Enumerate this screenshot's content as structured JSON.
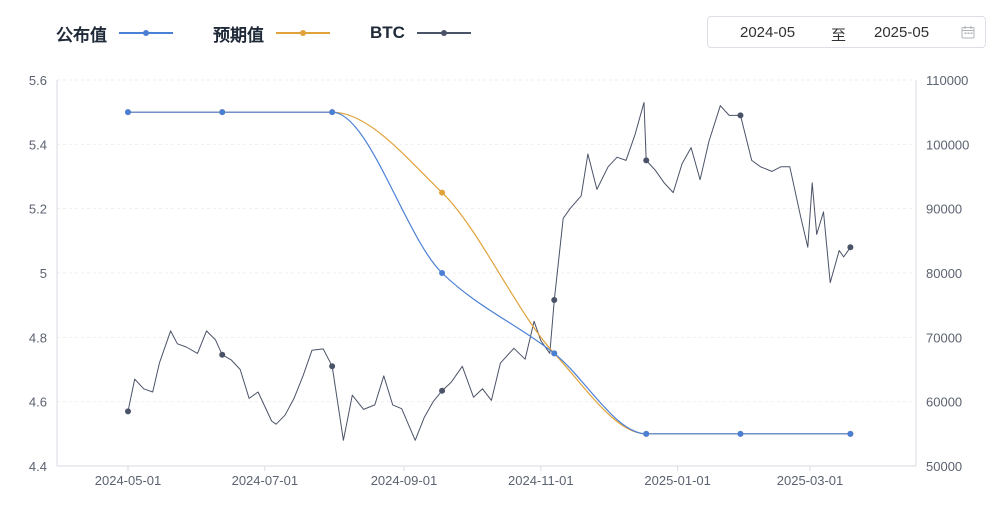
{
  "legend": {
    "items": [
      {
        "label": "公布值",
        "color": "#4a7fd6"
      },
      {
        "label": "预期值",
        "color": "#e0a23a"
      },
      {
        "label": "BTC",
        "color": "#4b5368"
      }
    ]
  },
  "date_range": {
    "start": "2024-05",
    "separator": "至",
    "end": "2025-05",
    "icon": "calendar-icon"
  },
  "chart_data": {
    "type": "line",
    "x_axis": {
      "type": "date",
      "ticks": [
        "2024-05-01",
        "2024-07-01",
        "2024-09-01",
        "2024-11-01",
        "2025-01-01",
        "2025-03-01"
      ]
    },
    "y_left": {
      "ticks": [
        "4.4",
        "4.6",
        "4.8",
        "5",
        "5.2",
        "5.4",
        "5.6"
      ],
      "ylim": [
        4.4,
        5.6
      ]
    },
    "y_right": {
      "ticks": [
        "50000",
        "60000",
        "70000",
        "80000",
        "90000",
        "100000",
        "110000"
      ],
      "ylim": [
        50000,
        110000
      ]
    },
    "grid": "horizontal dashed",
    "series": [
      {
        "name": "公布值",
        "axis": "left",
        "color": "#4a7fd6",
        "smooth": true,
        "points": [
          [
            "2024-05-01",
            5.5
          ],
          [
            "2024-06-12",
            5.5
          ],
          [
            "2024-07-31",
            5.5
          ],
          [
            "2024-09-18",
            5.0
          ],
          [
            "2024-11-07",
            4.75
          ],
          [
            "2024-12-18",
            4.5
          ],
          [
            "2025-01-29",
            4.5
          ],
          [
            "2025-03-19",
            4.5
          ]
        ]
      },
      {
        "name": "预期值",
        "axis": "left",
        "color": "#e0a23a",
        "smooth": true,
        "points": [
          [
            "2024-05-01",
            5.5
          ],
          [
            "2024-06-12",
            5.5
          ],
          [
            "2024-07-31",
            5.5
          ],
          [
            "2024-09-18",
            5.25
          ],
          [
            "2024-11-07",
            4.75
          ],
          [
            "2024-12-18",
            4.5
          ],
          [
            "2025-01-29",
            4.5
          ],
          [
            "2025-03-19",
            4.5
          ]
        ]
      },
      {
        "name": "BTC",
        "axis": "right",
        "color": "#4b5368",
        "points": [
          [
            "2024-05-01",
            58500
          ],
          [
            "2024-05-04",
            63500
          ],
          [
            "2024-05-08",
            62000
          ],
          [
            "2024-05-12",
            61500
          ],
          [
            "2024-05-15",
            66000
          ],
          [
            "2024-05-20",
            71000
          ],
          [
            "2024-05-23",
            69000
          ],
          [
            "2024-05-27",
            68500
          ],
          [
            "2024-06-01",
            67500
          ],
          [
            "2024-06-05",
            71000
          ],
          [
            "2024-06-09",
            69600
          ],
          [
            "2024-06-12",
            67300
          ],
          [
            "2024-06-16",
            66500
          ],
          [
            "2024-06-20",
            65000
          ],
          [
            "2024-06-24",
            60500
          ],
          [
            "2024-06-28",
            61500
          ],
          [
            "2024-07-04",
            57000
          ],
          [
            "2024-07-06",
            56500
          ],
          [
            "2024-07-10",
            57900
          ],
          [
            "2024-07-14",
            60500
          ],
          [
            "2024-07-18",
            64000
          ],
          [
            "2024-07-22",
            68000
          ],
          [
            "2024-07-27",
            68200
          ],
          [
            "2024-07-31",
            65500
          ],
          [
            "2024-08-05",
            54000
          ],
          [
            "2024-08-09",
            61000
          ],
          [
            "2024-08-14",
            58800
          ],
          [
            "2024-08-19",
            59500
          ],
          [
            "2024-08-23",
            64000
          ],
          [
            "2024-08-27",
            59500
          ],
          [
            "2024-08-31",
            58900
          ],
          [
            "2024-09-06",
            54000
          ],
          [
            "2024-09-10",
            57500
          ],
          [
            "2024-09-14",
            60000
          ],
          [
            "2024-09-18",
            61700
          ],
          [
            "2024-09-22",
            63000
          ],
          [
            "2024-09-27",
            65500
          ],
          [
            "2024-10-02",
            60700
          ],
          [
            "2024-10-06",
            62000
          ],
          [
            "2024-10-10",
            60200
          ],
          [
            "2024-10-14",
            66000
          ],
          [
            "2024-10-20",
            68300
          ],
          [
            "2024-10-25",
            66600
          ],
          [
            "2024-10-29",
            72500
          ],
          [
            "2024-11-01",
            69500
          ],
          [
            "2024-11-05",
            67500
          ],
          [
            "2024-11-07",
            75800
          ],
          [
            "2024-11-11",
            88500
          ],
          [
            "2024-11-14",
            90000
          ],
          [
            "2024-11-19",
            92000
          ],
          [
            "2024-11-22",
            98500
          ],
          [
            "2024-11-26",
            93000
          ],
          [
            "2024-12-01",
            96500
          ],
          [
            "2024-12-05",
            98000
          ],
          [
            "2024-12-09",
            97500
          ],
          [
            "2024-12-13",
            101500
          ],
          [
            "2024-12-17",
            106500
          ],
          [
            "2024-12-18",
            97500
          ],
          [
            "2024-12-22",
            96000
          ],
          [
            "2024-12-26",
            94000
          ],
          [
            "2024-12-30",
            92500
          ],
          [
            "2025-01-03",
            97000
          ],
          [
            "2025-01-07",
            99500
          ],
          [
            "2025-01-11",
            94500
          ],
          [
            "2025-01-15",
            100500
          ],
          [
            "2025-01-20",
            106000
          ],
          [
            "2025-01-24",
            104500
          ],
          [
            "2025-01-29",
            104500
          ],
          [
            "2025-02-03",
            97500
          ],
          [
            "2025-02-07",
            96500
          ],
          [
            "2025-02-12",
            95800
          ],
          [
            "2025-02-16",
            96500
          ],
          [
            "2025-02-20",
            96500
          ],
          [
            "2025-02-25",
            88500
          ],
          [
            "2025-02-28",
            84000
          ],
          [
            "2025-03-02",
            94000
          ],
          [
            "2025-03-04",
            86000
          ],
          [
            "2025-03-07",
            89500
          ],
          [
            "2025-03-10",
            78500
          ],
          [
            "2025-03-14",
            83500
          ],
          [
            "2025-03-16",
            82500
          ],
          [
            "2025-03-19",
            84000
          ]
        ],
        "markers": [
          "2024-05-01",
          "2024-06-12",
          "2024-07-31",
          "2024-09-18",
          "2024-11-07",
          "2024-12-18",
          "2025-01-29",
          "2025-03-19"
        ]
      }
    ]
  }
}
